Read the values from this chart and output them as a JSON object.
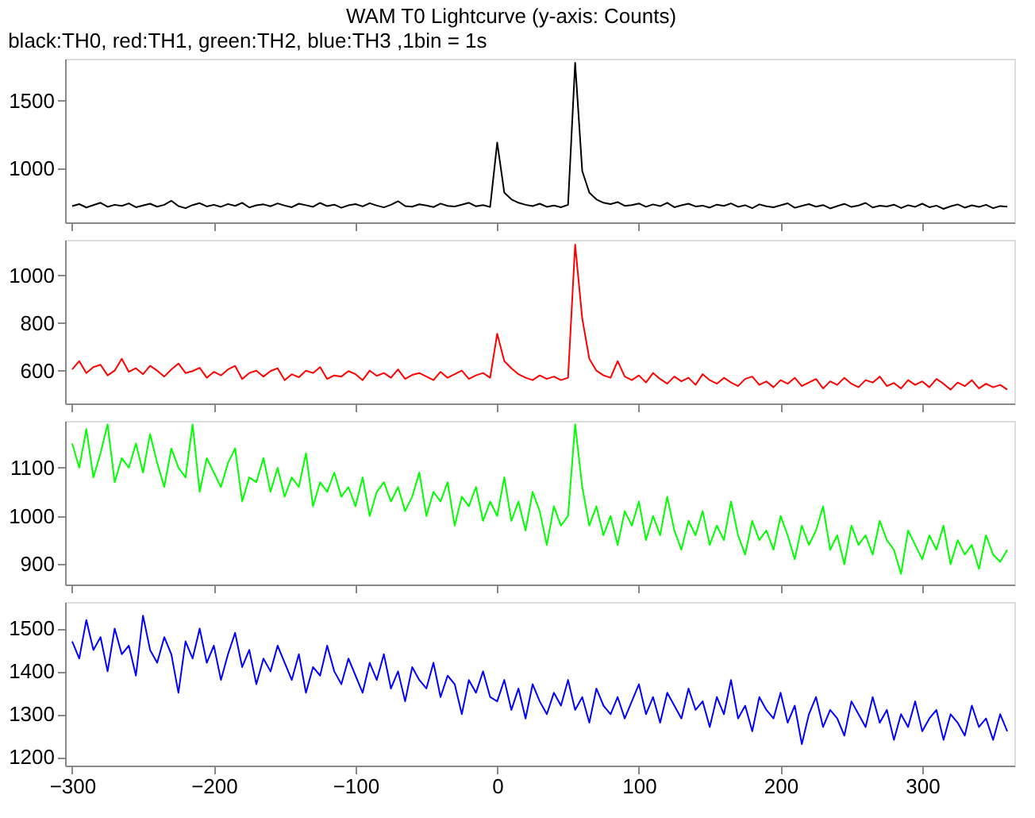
{
  "chart_data": [
    {
      "type": "line",
      "title": "WAM T0 Lightcurve (y-axis: Counts)",
      "subtitle": "black:TH0, red:TH1, green:TH2, blue:TH3 ,1bin = 1s",
      "tick_labels": "y",
      "xlim": [
        -305,
        365
      ],
      "xticks": [
        -300,
        -200,
        -100,
        0,
        100,
        200,
        300
      ],
      "ylim": [
        600,
        1810
      ],
      "yticks": [
        1000,
        1500
      ],
      "x": [
        -300,
        -295,
        -290,
        -285,
        -280,
        -275,
        -270,
        -265,
        -260,
        -255,
        -250,
        -245,
        -240,
        -235,
        -230,
        -225,
        -220,
        -215,
        -210,
        -205,
        -200,
        -195,
        -190,
        -185,
        -180,
        -175,
        -170,
        -165,
        -160,
        -155,
        -150,
        -145,
        -140,
        -135,
        -130,
        -125,
        -120,
        -115,
        -110,
        -105,
        -100,
        -95,
        -90,
        -85,
        -80,
        -75,
        -70,
        -65,
        -60,
        -55,
        -50,
        -45,
        -40,
        -35,
        -30,
        -25,
        -20,
        -15,
        -10,
        -5,
        0,
        5,
        10,
        15,
        20,
        25,
        30,
        35,
        40,
        45,
        50,
        55,
        60,
        65,
        70,
        75,
        80,
        85,
        90,
        95,
        100,
        105,
        110,
        115,
        120,
        125,
        130,
        135,
        140,
        145,
        150,
        155,
        160,
        165,
        170,
        175,
        180,
        185,
        190,
        195,
        200,
        205,
        210,
        215,
        220,
        225,
        230,
        235,
        240,
        245,
        250,
        255,
        260,
        265,
        270,
        275,
        280,
        285,
        290,
        295,
        300,
        305,
        310,
        315,
        320,
        325,
        330,
        335,
        340,
        345,
        350,
        355,
        360
      ],
      "series": [
        {
          "color": "#000000",
          "values": [
            720,
            735,
            710,
            728,
            745,
            715,
            730,
            722,
            740,
            712,
            725,
            738,
            716,
            730,
            760,
            720,
            705,
            728,
            742,
            718,
            730,
            715,
            736,
            722,
            745,
            710,
            726,
            733,
            719,
            740,
            724,
            712,
            738,
            727,
            715,
            744,
            720,
            731,
            708,
            726,
            735,
            718,
            742,
            724,
            711,
            730,
            757,
            721,
            716,
            734,
            725,
            713,
            739,
            722,
            717,
            731,
            745,
            719,
            728,
            714,
            1190,
            820,
            770,
            745,
            730,
            720,
            738,
            715,
            725,
            712,
            730,
            1780,
            980,
            820,
            770,
            745,
            735,
            750,
            722,
            728,
            740,
            715,
            733,
            720,
            745,
            712,
            726,
            738,
            718,
            724,
            709,
            731,
            722,
            740,
            715,
            727,
            705,
            733,
            719,
            712,
            726,
            741,
            708,
            722,
            735,
            716,
            728,
            703,
            720,
            737,
            714,
            725,
            744,
            710,
            723,
            718,
            731,
            706,
            727,
            715,
            738,
            712,
            724,
            700,
            719,
            733,
            709,
            726,
            714,
            730,
            705,
            721,
            716
          ]
        }
      ]
    },
    {
      "type": "line",
      "tick_labels": "y",
      "xlim": [
        -305,
        365
      ],
      "xticks": [
        -300,
        -200,
        -100,
        0,
        100,
        200,
        300
      ],
      "ylim": [
        462,
        1150
      ],
      "yticks": [
        600,
        800,
        1000
      ],
      "x": [
        -300,
        -295,
        -290,
        -285,
        -280,
        -275,
        -270,
        -265,
        -260,
        -255,
        -250,
        -245,
        -240,
        -235,
        -230,
        -225,
        -220,
        -215,
        -210,
        -205,
        -200,
        -195,
        -190,
        -185,
        -180,
        -175,
        -170,
        -165,
        -160,
        -155,
        -150,
        -145,
        -140,
        -135,
        -130,
        -125,
        -120,
        -115,
        -110,
        -105,
        -100,
        -95,
        -90,
        -85,
        -80,
        -75,
        -70,
        -65,
        -60,
        -55,
        -50,
        -45,
        -40,
        -35,
        -30,
        -25,
        -20,
        -15,
        -10,
        -5,
        0,
        5,
        10,
        15,
        20,
        25,
        30,
        35,
        40,
        45,
        50,
        55,
        60,
        65,
        70,
        75,
        80,
        85,
        90,
        95,
        100,
        105,
        110,
        115,
        120,
        125,
        130,
        135,
        140,
        145,
        150,
        155,
        160,
        165,
        170,
        175,
        180,
        185,
        190,
        195,
        200,
        205,
        210,
        215,
        220,
        225,
        230,
        235,
        240,
        245,
        250,
        255,
        260,
        265,
        270,
        275,
        280,
        285,
        290,
        295,
        300,
        305,
        310,
        315,
        320,
        325,
        330,
        335,
        340,
        345,
        350,
        355,
        360
      ],
      "series": [
        {
          "color": "#ff0000",
          "values": [
            605,
            640,
            590,
            615,
            625,
            580,
            600,
            650,
            595,
            610,
            585,
            620,
            600,
            575,
            605,
            630,
            590,
            598,
            612,
            570,
            595,
            580,
            605,
            620,
            565,
            590,
            600,
            575,
            598,
            610,
            560,
            585,
            572,
            600,
            590,
            615,
            565,
            580,
            575,
            598,
            585,
            560,
            600,
            578,
            590,
            570,
            605,
            565,
            582,
            590,
            575,
            560,
            595,
            570,
            585,
            600,
            565,
            580,
            590,
            570,
            755,
            640,
            610,
            585,
            570,
            560,
            580,
            565,
            575,
            560,
            570,
            1130,
            820,
            650,
            600,
            580,
            570,
            640,
            575,
            560,
            580,
            550,
            590,
            565,
            545,
            575,
            555,
            570,
            540,
            585,
            560,
            545,
            570,
            550,
            535,
            565,
            575,
            540,
            555,
            530,
            560,
            545,
            570,
            535,
            550,
            565,
            525,
            555,
            540,
            570,
            545,
            530,
            560,
            550,
            575,
            535,
            548,
            525,
            560,
            540,
            555,
            530,
            565,
            545,
            520,
            550,
            535,
            560,
            525,
            545,
            530,
            540,
            520
          ]
        }
      ]
    },
    {
      "type": "line",
      "tick_labels": "y",
      "xlim": [
        -305,
        365
      ],
      "xticks": [
        -300,
        -200,
        -100,
        0,
        100,
        200,
        300
      ],
      "ylim": [
        858,
        1197
      ],
      "yticks": [
        900,
        1000,
        1100
      ],
      "x": [
        -300,
        -295,
        -290,
        -285,
        -280,
        -275,
        -270,
        -265,
        -260,
        -255,
        -250,
        -245,
        -240,
        -235,
        -230,
        -225,
        -220,
        -215,
        -210,
        -205,
        -200,
        -195,
        -190,
        -185,
        -180,
        -175,
        -170,
        -165,
        -160,
        -155,
        -150,
        -145,
        -140,
        -135,
        -130,
        -125,
        -120,
        -115,
        -110,
        -105,
        -100,
        -95,
        -90,
        -85,
        -80,
        -75,
        -70,
        -65,
        -60,
        -55,
        -50,
        -45,
        -40,
        -35,
        -30,
        -25,
        -20,
        -15,
        -10,
        -5,
        0,
        5,
        10,
        15,
        20,
        25,
        30,
        35,
        40,
        45,
        50,
        55,
        60,
        65,
        70,
        75,
        80,
        85,
        90,
        95,
        100,
        105,
        110,
        115,
        120,
        125,
        130,
        135,
        140,
        145,
        150,
        155,
        160,
        165,
        170,
        175,
        180,
        185,
        190,
        195,
        200,
        205,
        210,
        215,
        220,
        225,
        230,
        235,
        240,
        245,
        250,
        255,
        260,
        265,
        270,
        275,
        280,
        285,
        290,
        295,
        300,
        305,
        310,
        315,
        320,
        325,
        330,
        335,
        340,
        345,
        350,
        355,
        360
      ],
      "series": [
        {
          "color": "#00ff00",
          "values": [
            1150,
            1100,
            1180,
            1080,
            1130,
            1190,
            1070,
            1120,
            1100,
            1150,
            1090,
            1170,
            1110,
            1060,
            1140,
            1100,
            1080,
            1190,
            1050,
            1120,
            1090,
            1060,
            1110,
            1140,
            1030,
            1080,
            1070,
            1120,
            1050,
            1100,
            1040,
            1080,
            1060,
            1130,
            1020,
            1070,
            1050,
            1090,
            1040,
            1060,
            1020,
            1080,
            1000,
            1050,
            1070,
            1030,
            1060,
            1010,
            1040,
            1090,
            1000,
            1050,
            1030,
            1070,
            980,
            1040,
            1020,
            1060,
            990,
            1030,
            1000,
            1080,
            990,
            1030,
            970,
            1050,
            1010,
            940,
            1020,
            980,
            1000,
            1190,
            1060,
            980,
            1020,
            960,
            1000,
            940,
            1010,
            980,
            1030,
            950,
            1000,
            960,
            1040,
            970,
            930,
            990,
            960,
            1010,
            940,
            980,
            950,
            1030,
            960,
            920,
            990,
            950,
            970,
            930,
            1000,
            960,
            910,
            980,
            940,
            970,
            1020,
            930,
            960,
            900,
            980,
            940,
            960,
            920,
            990,
            950,
            930,
            880,
            970,
            940,
            910,
            960,
            930,
            980,
            900,
            950,
            920,
            940,
            890,
            960,
            920,
            905,
            930
          ]
        }
      ]
    },
    {
      "type": "line",
      "xlim": [
        -305,
        365
      ],
      "xticks": [
        -300,
        -200,
        -100,
        0,
        100,
        200,
        300
      ],
      "ylim": [
        1180,
        1562
      ],
      "yticks": [
        1200,
        1300,
        1400,
        1500
      ],
      "x": [
        -300,
        -295,
        -290,
        -285,
        -280,
        -275,
        -270,
        -265,
        -260,
        -255,
        -250,
        -245,
        -240,
        -235,
        -230,
        -225,
        -220,
        -215,
        -210,
        -205,
        -200,
        -195,
        -190,
        -185,
        -180,
        -175,
        -170,
        -165,
        -160,
        -155,
        -150,
        -145,
        -140,
        -135,
        -130,
        -125,
        -120,
        -115,
        -110,
        -105,
        -100,
        -95,
        -90,
        -85,
        -80,
        -75,
        -70,
        -65,
        -60,
        -55,
        -50,
        -45,
        -40,
        -35,
        -30,
        -25,
        -20,
        -15,
        -10,
        -5,
        0,
        5,
        10,
        15,
        20,
        25,
        30,
        35,
        40,
        45,
        50,
        55,
        60,
        65,
        70,
        75,
        80,
        85,
        90,
        95,
        100,
        105,
        110,
        115,
        120,
        125,
        130,
        135,
        140,
        145,
        150,
        155,
        160,
        165,
        170,
        175,
        180,
        185,
        190,
        195,
        200,
        205,
        210,
        215,
        220,
        225,
        230,
        235,
        240,
        245,
        250,
        255,
        260,
        265,
        270,
        275,
        280,
        285,
        290,
        295,
        300,
        305,
        310,
        315,
        320,
        325,
        330,
        335,
        340,
        345,
        350,
        355,
        360
      ],
      "series": [
        {
          "color": "#0000ff",
          "values": [
            1470,
            1430,
            1520,
            1450,
            1480,
            1400,
            1500,
            1440,
            1460,
            1390,
            1530,
            1450,
            1420,
            1480,
            1440,
            1350,
            1470,
            1430,
            1500,
            1420,
            1460,
            1380,
            1440,
            1490,
            1410,
            1450,
            1370,
            1430,
            1400,
            1460,
            1420,
            1380,
            1440,
            1350,
            1410,
            1390,
            1460,
            1400,
            1370,
            1430,
            1390,
            1350,
            1420,
            1380,
            1440,
            1360,
            1400,
            1330,
            1410,
            1380,
            1360,
            1420,
            1340,
            1390,
            1370,
            1300,
            1380,
            1350,
            1400,
            1340,
            1330,
            1380,
            1310,
            1360,
            1290,
            1370,
            1330,
            1300,
            1350,
            1320,
            1380,
            1310,
            1340,
            1280,
            1360,
            1320,
            1300,
            1340,
            1290,
            1330,
            1370,
            1300,
            1340,
            1280,
            1350,
            1320,
            1290,
            1360,
            1310,
            1330,
            1270,
            1340,
            1300,
            1380,
            1290,
            1320,
            1260,
            1340,
            1310,
            1290,
            1350,
            1280,
            1320,
            1230,
            1300,
            1340,
            1270,
            1310,
            1290,
            1250,
            1330,
            1300,
            1270,
            1340,
            1280,
            1310,
            1240,
            1300,
            1270,
            1330,
            1260,
            1290,
            1310,
            1240,
            1300,
            1280,
            1250,
            1320,
            1270,
            1290,
            1240,
            1300,
            1260
          ]
        }
      ]
    }
  ]
}
